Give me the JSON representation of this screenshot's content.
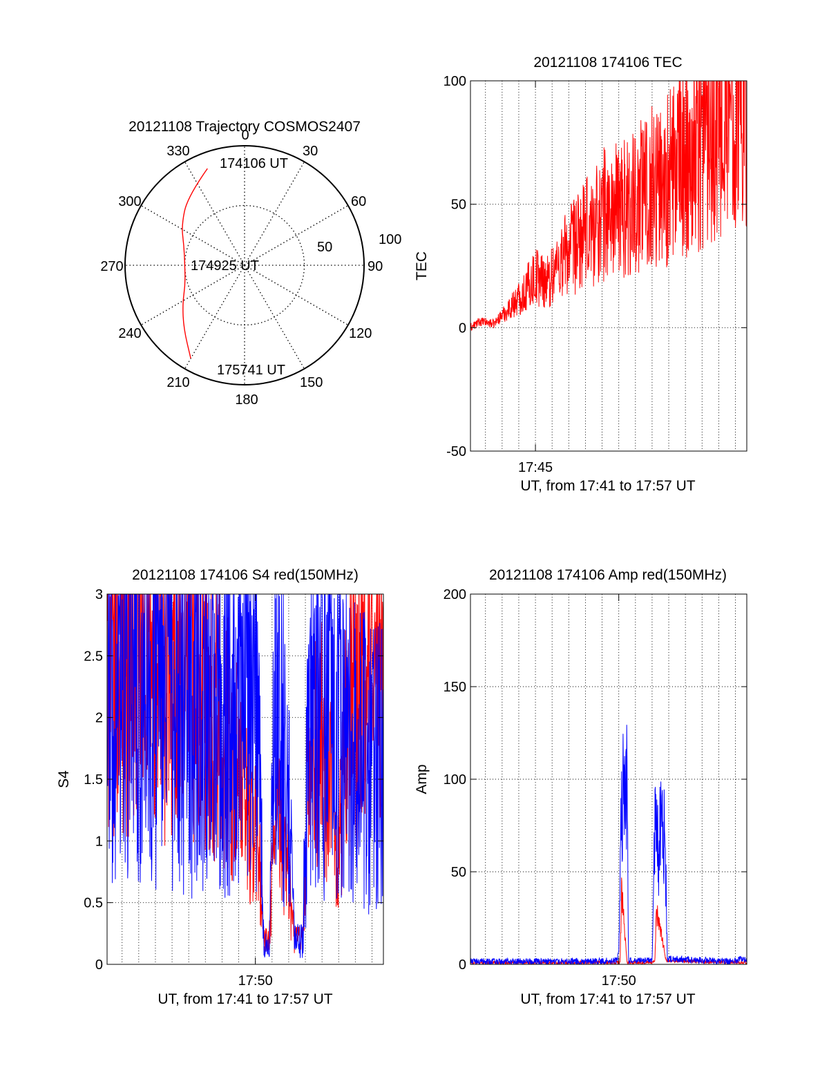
{
  "colors": {
    "red": "#ff0000",
    "blue": "#0000ff",
    "axis": "#000000",
    "grid": "#000000",
    "background": "#ffffff"
  },
  "chart_data": [
    {
      "id": "trajectory",
      "type": "polar-trajectory",
      "title": "20121108 Trajectory COSMOS2407",
      "angle_labels": [
        "0",
        "30",
        "60",
        "90",
        "120",
        "150",
        "180",
        "210",
        "240",
        "270",
        "300",
        "330"
      ],
      "radial_labels": [
        "50",
        "100"
      ],
      "elevation_range": [
        0,
        90
      ],
      "grid": "dotted",
      "track": {
        "color": "#ff0000",
        "points": [
          {
            "time": "174106 UT",
            "azimuth": 339,
            "elevation": 12
          },
          {
            "azimuth": 320,
            "elevation": 23
          },
          {
            "azimuth": 302,
            "elevation": 34
          },
          {
            "azimuth": 288,
            "elevation": 42
          },
          {
            "time": "174925 UT",
            "azimuth": 270,
            "elevation": 45
          },
          {
            "azimuth": 252,
            "elevation": 43
          },
          {
            "azimuth": 238,
            "elevation": 35
          },
          {
            "azimuth": 224,
            "elevation": 24
          },
          {
            "time": "175741 UT",
            "azimuth": 210,
            "elevation": 9
          }
        ]
      }
    },
    {
      "id": "tec",
      "type": "line",
      "title": "20121108 174106 TEC",
      "xlabel": "UT, from 17:41 to 17:57 UT",
      "ylabel": "TEC",
      "xlim": [
        "17:41:06",
        "17:57:41"
      ],
      "ylim": [
        -50,
        100
      ],
      "yticks": [
        "-50",
        "0",
        "50",
        "100"
      ],
      "xticks": [
        {
          "label": "17:45",
          "time": "17:45:00"
        }
      ],
      "grid": "dotted",
      "series": [
        {
          "color": "#ff0000",
          "noise": 0.6,
          "points": [
            [
              "17:41:06",
              0
            ],
            [
              "17:41:40",
              2.5
            ],
            [
              "17:42:10",
              2
            ],
            [
              "17:42:30",
              1.5
            ],
            [
              "17:42:50",
              4
            ],
            [
              "17:43:20",
              7
            ],
            [
              "17:43:50",
              11
            ],
            [
              "17:44:20",
              14
            ],
            [
              "17:44:50",
              20
            ],
            [
              "17:45:10",
              21
            ],
            [
              "17:45:30",
              19.5
            ],
            [
              "17:45:50",
              19
            ],
            [
              "17:46:10",
              24
            ],
            [
              "17:46:40",
              29
            ],
            [
              "17:47:10",
              32
            ],
            [
              "17:47:40",
              35
            ],
            [
              "17:48:10",
              39
            ],
            [
              "17:48:40",
              43
            ],
            [
              "17:49:10",
              47
            ],
            [
              "17:49:30",
              46
            ],
            [
              "17:50:00",
              48
            ],
            [
              "17:50:30",
              49
            ],
            [
              "17:51:00",
              52
            ],
            [
              "17:51:30",
              56
            ],
            [
              "17:52:00",
              58
            ],
            [
              "17:52:30",
              59
            ],
            [
              "17:53:00",
              60
            ],
            [
              "17:53:30",
              64
            ],
            [
              "17:54:00",
              69
            ],
            [
              "17:54:30",
              73
            ],
            [
              "17:55:00",
              78
            ],
            [
              "17:55:30",
              85
            ],
            [
              "17:56:00",
              90
            ],
            [
              "17:56:30",
              92
            ],
            [
              "17:56:50",
              94
            ],
            [
              "17:57:20",
              95.5
            ],
            [
              "17:57:41",
              96
            ]
          ]
        }
      ]
    },
    {
      "id": "s4",
      "type": "line",
      "title": "20121108 174106 S4 red(150MHz)",
      "xlabel": "UT, from 17:41 to 17:57 UT",
      "ylabel": "S4",
      "xlim": [
        "17:41:06",
        "17:57:41"
      ],
      "ylim": [
        0,
        3
      ],
      "yticks": [
        "0",
        "0.5",
        "1",
        "1.5",
        "2",
        "2.5",
        "3"
      ],
      "xticks": [
        {
          "label": "17:50",
          "time": "17:50:00"
        }
      ],
      "grid": "dotted",
      "series": [
        {
          "color": "#ff0000",
          "noise": 0.6,
          "points": [
            [
              "17:41:06",
              2.4
            ],
            [
              "17:42:00",
              2.6
            ],
            [
              "17:43:00",
              2.5
            ],
            [
              "17:44:00",
              2.5
            ],
            [
              "17:45:00",
              2.3
            ],
            [
              "17:46:00",
              2.2
            ],
            [
              "17:47:00",
              2.1
            ],
            [
              "17:48:00",
              1.9
            ],
            [
              "17:48:50",
              1.6
            ],
            [
              "17:49:20",
              1.3
            ],
            [
              "17:49:50",
              1.1
            ],
            [
              "17:50:10",
              1.0
            ],
            [
              "17:50:30",
              0.2
            ],
            [
              "17:50:50",
              0.18
            ],
            [
              "17:51:10",
              1.2
            ],
            [
              "17:51:50",
              0.9
            ],
            [
              "17:52:20",
              0.2
            ],
            [
              "17:52:50",
              0.2
            ],
            [
              "17:53:10",
              1.5
            ],
            [
              "17:54:00",
              1.8
            ],
            [
              "17:54:30",
              1.4
            ],
            [
              "17:55:00",
              0.9
            ],
            [
              "17:55:30",
              2.0
            ],
            [
              "17:56:30",
              2.5
            ],
            [
              "17:57:41",
              2.4
            ]
          ]
        },
        {
          "color": "#0000ff",
          "noise": 0.75,
          "points": [
            [
              "17:41:06",
              2.2
            ],
            [
              "17:42:00",
              2.4
            ],
            [
              "17:43:00",
              2.4
            ],
            [
              "17:44:00",
              2.3
            ],
            [
              "17:45:00",
              2.2
            ],
            [
              "17:46:00",
              2.1
            ],
            [
              "17:47:00",
              2.1
            ],
            [
              "17:48:00",
              2.0
            ],
            [
              "17:49:00",
              2.2
            ],
            [
              "17:49:40",
              2.4
            ],
            [
              "17:50:10",
              2.0
            ],
            [
              "17:50:30",
              0.15
            ],
            [
              "17:50:50",
              0.15
            ],
            [
              "17:51:10",
              2.0
            ],
            [
              "17:51:50",
              1.8
            ],
            [
              "17:52:20",
              0.2
            ],
            [
              "17:52:50",
              0.2
            ],
            [
              "17:53:10",
              1.9
            ],
            [
              "17:54:00",
              2.0
            ],
            [
              "17:55:00",
              2.0
            ],
            [
              "17:56:00",
              1.7
            ],
            [
              "17:57:00",
              1.6
            ],
            [
              "17:57:41",
              1.6
            ]
          ]
        }
      ]
    },
    {
      "id": "amp",
      "type": "line",
      "title": "20121108 174106 Amp red(150MHz)",
      "xlabel": "UT, from 17:41 to 17:57 UT",
      "ylabel": "Amp",
      "xlim": [
        "17:41:06",
        "17:57:41"
      ],
      "ylim": [
        0,
        200
      ],
      "yticks": [
        "0",
        "50",
        "100",
        "150",
        "200"
      ],
      "xticks": [
        {
          "label": "17:50",
          "time": "17:50:00"
        }
      ],
      "grid": "dotted",
      "series": [
        {
          "color": "#ff0000",
          "noise": 0.25,
          "points": [
            [
              "17:41:06",
              1
            ],
            [
              "17:50:05",
              1
            ],
            [
              "17:50:10",
              40
            ],
            [
              "17:50:20",
              20
            ],
            [
              "17:50:30",
              1
            ],
            [
              "17:52:10",
              1
            ],
            [
              "17:52:15",
              28
            ],
            [
              "17:52:30",
              20
            ],
            [
              "17:52:50",
              2
            ],
            [
              "17:57:41",
              1
            ]
          ]
        },
        {
          "color": "#0000ff",
          "noise": 0.45,
          "points": [
            [
              "17:41:06",
              1.5
            ],
            [
              "17:44:00",
              1.5
            ],
            [
              "17:48:00",
              1.5
            ],
            [
              "17:49:50",
              2
            ],
            [
              "17:50:00",
              5
            ],
            [
              "17:50:10",
              85
            ],
            [
              "17:50:20",
              110
            ],
            [
              "17:50:30",
              105
            ],
            [
              "17:50:35",
              2
            ],
            [
              "17:52:00",
              2
            ],
            [
              "17:52:10",
              70
            ],
            [
              "17:52:25",
              65
            ],
            [
              "17:52:45",
              75
            ],
            [
              "17:52:55",
              3
            ],
            [
              "17:56:50",
              1.5
            ],
            [
              "17:57:20",
              3
            ],
            [
              "17:57:41",
              2
            ]
          ]
        }
      ]
    }
  ]
}
